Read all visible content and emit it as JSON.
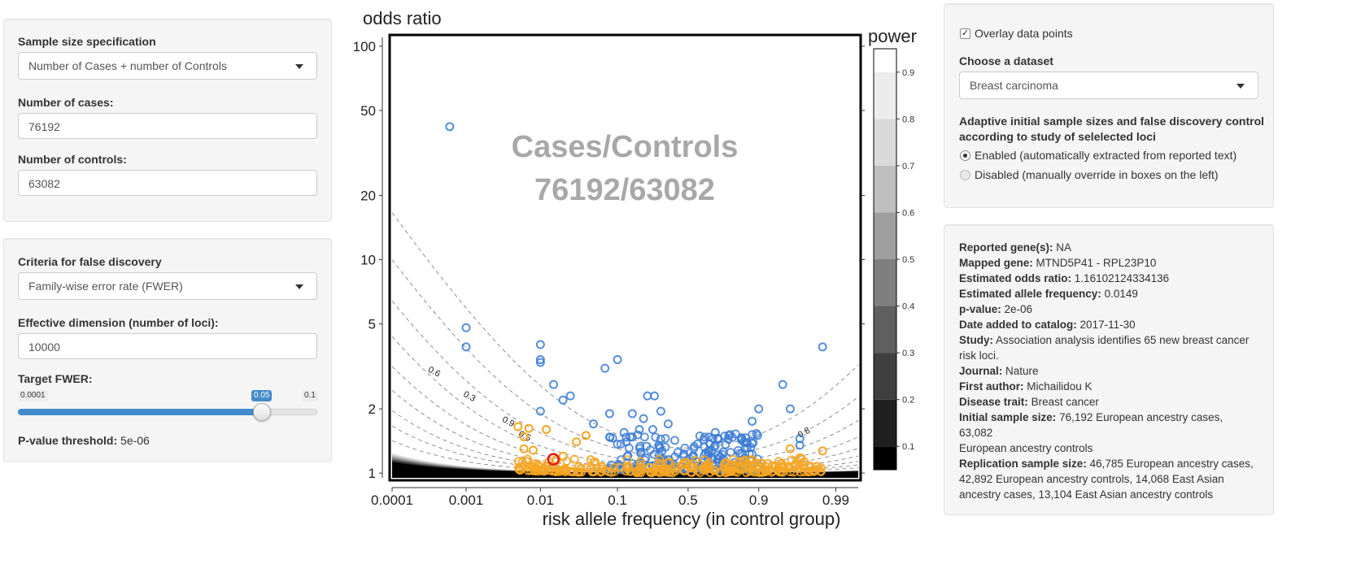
{
  "sample_panel": {
    "spec_label": "Sample size specification",
    "spec_value": "Number of Cases + number of Controls",
    "cases_label": "Number of cases:",
    "cases_value": "76192",
    "controls_label": "Number of controls:",
    "controls_value": "63082"
  },
  "criteria_panel": {
    "criteria_label": "Criteria for false discovery",
    "criteria_value": "Family-wise error rate (FWER)",
    "dim_label": "Effective dimension (number of loci):",
    "dim_value": "10000",
    "fwer_label": "Target FWER:",
    "slider_min": "0.0001",
    "slider_value": "0.05",
    "slider_max": "0.1",
    "slider_level": 0.5,
    "pthresh_label": "P-value threshold:",
    "pthresh_value": "5e-06"
  },
  "options_panel": {
    "overlay_label": "Overlay data points",
    "overlay_checked": true,
    "dataset_label": "Choose a dataset",
    "dataset_value": "Breast carcinoma",
    "adaptive_label_line1": "Adaptive initial sample sizes and false discovery control",
    "adaptive_label_line2": "according to study of selelected loci",
    "radio_enabled": "Enabled (automatically extracted from reported text)",
    "radio_disabled": "Disabled (manually override in boxes on the left)"
  },
  "info_panel": {
    "reported_gene_label": "Reported gene(s):",
    "reported_gene": "NA",
    "mapped_gene_label": "Mapped gene:",
    "mapped_gene": "MTND5P41 - RPL23P10",
    "odds_label": "Estimated odds ratio:",
    "odds": "1.16102124334136",
    "freq_label": "Estimated allele frequency:",
    "freq": "0.0149",
    "pval_label": "p-value:",
    "pval": "2e-06",
    "date_label": "Date added to catalog:",
    "date": "2017-11-30",
    "study_label": "Study:",
    "study_line1": "Association analysis identifies 65 new breast cancer",
    "study_line2": "risk loci.",
    "journal_label": "Journal:",
    "journal": "Nature",
    "author_label": "First author:",
    "author": "Michailidou K",
    "trait_label": "Disease trait:",
    "trait": "Breast cancer",
    "initial_label": "Initial sample size:",
    "initial_line1": "76,192 European ancestry cases, 63,082",
    "initial_line2": "European ancestry controls",
    "replication_label": "Replication sample size:",
    "replication_line1": "46,785 European ancestry cases,",
    "replication_line2": "42,892 European ancestry controls, 14,068 East Asian",
    "replication_line3": "ancestry cases, 13,104 East Asian ancestry controls"
  },
  "chart_data": {
    "type": "scatter",
    "ylabel": "odds ratio",
    "xlabel": "risk allele frequency (in control group)",
    "legend_title": "power",
    "overlay_line1": "Cases/Controls",
    "overlay_line2": "76192/63082",
    "x_ticks": [
      "0.0001",
      "0.001",
      "0.01",
      "0.1",
      "0.5",
      "0.9",
      "0.99"
    ],
    "y_ticks": [
      "1",
      "2",
      "5",
      "10",
      "20",
      "50",
      "100"
    ],
    "legend_ticks": [
      "0.1",
      "0.2",
      "0.3",
      "0.4",
      "0.5",
      "0.6",
      "0.7",
      "0.8",
      "0.9"
    ],
    "contour_labels": [
      "0.6",
      "0.3",
      "0.9",
      "0.5",
      "0.8"
    ],
    "x_scale": "logit",
    "y_scale": "log",
    "xlim": [
      0.0001,
      0.995
    ],
    "ylim": [
      0.95,
      110
    ],
    "colors": {
      "significant": "#f5a623",
      "nonsignificant": "#3a7bd5",
      "highlight": "#e8190f"
    },
    "highlight_point": {
      "x": 0.0149,
      "y": 1.161
    },
    "blue_points": [
      {
        "x": 0.0006,
        "y": 42
      },
      {
        "x": 0.001,
        "y": 4.8
      },
      {
        "x": 0.001,
        "y": 3.9
      },
      {
        "x": 0.01,
        "y": 4.0
      },
      {
        "x": 0.01,
        "y": 3.4
      },
      {
        "x": 0.01,
        "y": 3.3
      },
      {
        "x": 0.015,
        "y": 2.6
      },
      {
        "x": 0.07,
        "y": 3.1
      },
      {
        "x": 0.1,
        "y": 3.4
      },
      {
        "x": 0.02,
        "y": 2.2
      },
      {
        "x": 0.025,
        "y": 2.3
      },
      {
        "x": 0.01,
        "y": 1.95
      },
      {
        "x": 0.22,
        "y": 2.3
      },
      {
        "x": 0.26,
        "y": 2.3
      },
      {
        "x": 0.3,
        "y": 1.95
      },
      {
        "x": 0.95,
        "y": 2.6
      },
      {
        "x": 0.985,
        "y": 3.9
      },
      {
        "x": 0.96,
        "y": 2.0
      },
      {
        "x": 0.9,
        "y": 2.0
      },
      {
        "x": 0.88,
        "y": 1.75
      },
      {
        "x": 0.15,
        "y": 1.9
      },
      {
        "x": 0.08,
        "y": 1.9
      },
      {
        "x": 0.05,
        "y": 1.7
      },
      {
        "x": 0.2,
        "y": 1.8
      },
      {
        "x": 0.35,
        "y": 1.7
      },
      {
        "x": 0.7,
        "y": 1.55
      },
      {
        "x": 0.78,
        "y": 1.5
      },
      {
        "x": 0.97,
        "y": 1.45
      },
      {
        "x": 0.97,
        "y": 1.35
      },
      {
        "x": 0.25,
        "y": 1.6
      },
      {
        "x": 0.12,
        "y": 1.55
      },
      {
        "x": 0.18,
        "y": 1.6
      }
    ],
    "orange_points": [
      {
        "x": 0.005,
        "y": 1.65
      },
      {
        "x": 0.007,
        "y": 1.62
      },
      {
        "x": 0.012,
        "y": 1.6
      },
      {
        "x": 0.006,
        "y": 1.48
      },
      {
        "x": 0.006,
        "y": 1.3
      },
      {
        "x": 0.008,
        "y": 1.28
      },
      {
        "x": 0.02,
        "y": 1.2
      },
      {
        "x": 0.96,
        "y": 1.3
      },
      {
        "x": 0.985,
        "y": 1.27
      },
      {
        "x": 0.97,
        "y": 1.18
      },
      {
        "x": 0.04,
        "y": 1.5
      },
      {
        "x": 0.03,
        "y": 1.4
      }
    ]
  }
}
